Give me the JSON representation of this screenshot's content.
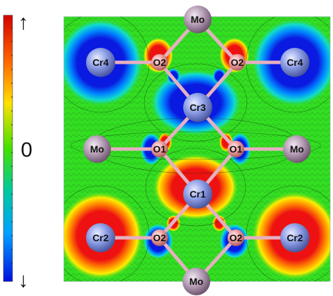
{
  "colorbar": {
    "top_arrow": "↑",
    "bottom_arrow": "↓",
    "zero_label": "0",
    "colors": [
      "#d40000",
      "#ff6a00",
      "#ffe000",
      "#44e000",
      "#00c8a0",
      "#00a0ff",
      "#0010e0"
    ]
  },
  "map_colors": {
    "background": "#33dd22",
    "positive": "#ee1111",
    "positive_mid": "#ff8800",
    "positive_light": "#ffee00",
    "negative": "#0a1ae0",
    "negative_mid": "#00aaff",
    "negative_light": "#11ddcc"
  },
  "atom_colors": {
    "mo": "#b8a0b8",
    "cr": "#8fa0e8",
    "o": "#f0a0a0",
    "bond": "#e6b0c0"
  },
  "atoms": [
    {
      "id": "mo-top",
      "label": "Mo",
      "kind": "mo"
    },
    {
      "id": "cr4-left",
      "label": "Cr4",
      "kind": "cr"
    },
    {
      "id": "o2-top-left",
      "label": "O2",
      "kind": "o"
    },
    {
      "id": "o2-top-right",
      "label": "O2",
      "kind": "o"
    },
    {
      "id": "cr4-right",
      "label": "Cr4",
      "kind": "cr"
    },
    {
      "id": "cr3",
      "label": "Cr3",
      "kind": "cr"
    },
    {
      "id": "mo-left",
      "label": "Mo",
      "kind": "mo"
    },
    {
      "id": "o1-left",
      "label": "O1",
      "kind": "o"
    },
    {
      "id": "o1-right",
      "label": "O1",
      "kind": "o"
    },
    {
      "id": "mo-right",
      "label": "Mo",
      "kind": "mo"
    },
    {
      "id": "cr1",
      "label": "Cr1",
      "kind": "cr"
    },
    {
      "id": "cr2-left",
      "label": "Cr2",
      "kind": "cr"
    },
    {
      "id": "o2-bottom-left",
      "label": "O2",
      "kind": "o"
    },
    {
      "id": "o2-bottom-right",
      "label": "O2",
      "kind": "o"
    },
    {
      "id": "cr2-right",
      "label": "Cr2",
      "kind": "cr"
    },
    {
      "id": "mo-bottom",
      "label": "Mo",
      "kind": "mo"
    }
  ]
}
